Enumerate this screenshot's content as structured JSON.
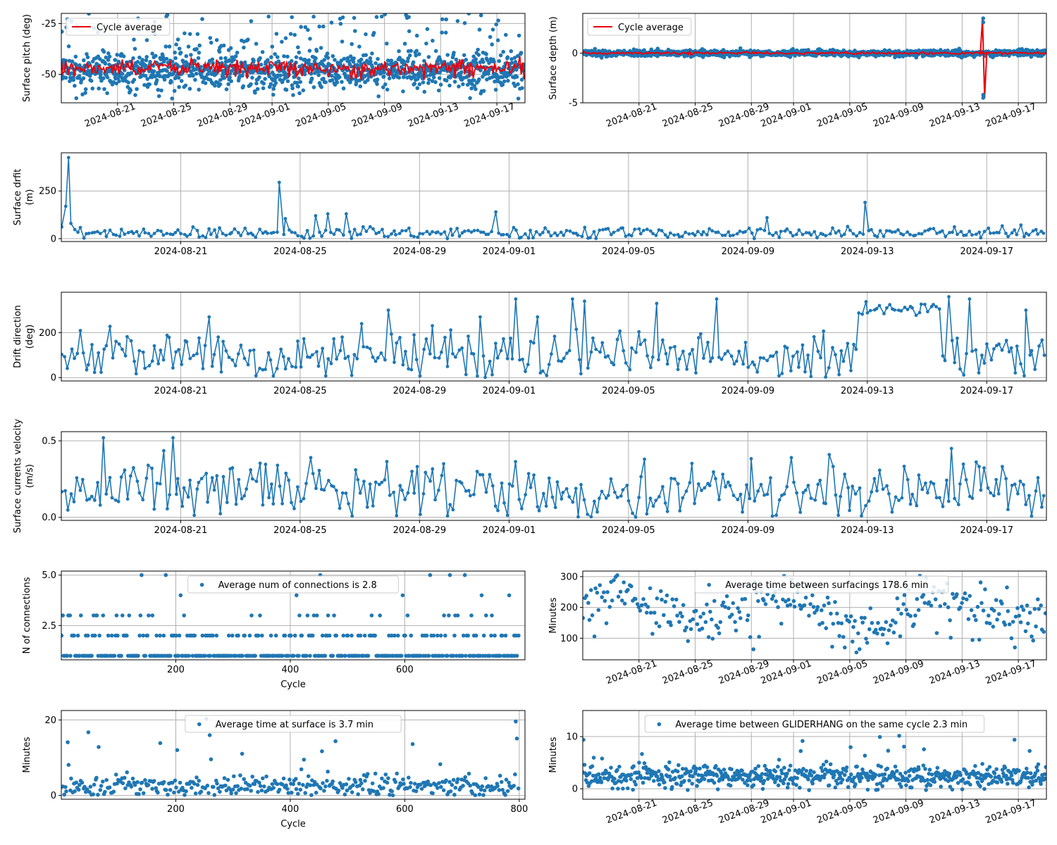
{
  "colors": {
    "series": "#1f77b4",
    "average": "#e8000b",
    "grid": "#b0b0b0"
  },
  "chart_data": [
    {
      "id": "pitch",
      "type": "scatter+line",
      "ylabel": "Surface pitch (deg)",
      "xaxis": "date",
      "xlim": [
        "2024-08-17",
        "2024-09-19"
      ],
      "ylim": [
        -64,
        -20
      ],
      "xticks": [
        "2024-08-21",
        "2024-08-25",
        "2024-08-29",
        "2024-09-01",
        "2024-09-05",
        "2024-09-09",
        "2024-09-13",
        "2024-09-17"
      ],
      "yticks": [
        -50,
        -25
      ],
      "xtick_rotation": 20,
      "legend": {
        "label": "Cycle average",
        "placement": "upper left"
      },
      "series": [
        {
          "name": "",
          "style": "scatter",
          "gen": {
            "x0": "2024-08-17",
            "x1": "2024-09-19",
            "n": 1300,
            "center": -48,
            "spread": 4,
            "outlier_frac": 0.18,
            "outlier_range": [
              -20,
              -62
            ],
            "seed": 11
          }
        },
        {
          "name": "Cycle average",
          "style": "line",
          "gen": {
            "x0": "2024-08-17",
            "x1": "2024-09-19",
            "n": 330,
            "center": -47,
            "spread": 2.2,
            "seed": 12
          }
        }
      ]
    },
    {
      "id": "depth",
      "type": "scatter+line",
      "ylabel": "Surface depth (m)",
      "xaxis": "date",
      "xlim": [
        "2024-08-17",
        "2024-09-19"
      ],
      "ylim": [
        -5,
        4
      ],
      "xticks": [
        "2024-08-21",
        "2024-08-25",
        "2024-08-29",
        "2024-09-01",
        "2024-09-05",
        "2024-09-09",
        "2024-09-13",
        "2024-09-17"
      ],
      "yticks": [
        -5,
        0
      ],
      "xtick_rotation": 20,
      "legend": {
        "label": "Cycle average",
        "placement": "upper left"
      },
      "spike": {
        "date": "2024-09-14.5",
        "high": 3.5,
        "low": -4.5
      },
      "series": [
        {
          "name": "",
          "style": "scatter",
          "gen": {
            "x0": "2024-08-17",
            "x1": "2024-09-19",
            "n": 1300,
            "center": 0,
            "spread": 0.15,
            "seed": 21
          }
        },
        {
          "name": "Cycle average",
          "style": "line",
          "gen": {
            "x0": "2024-08-17",
            "x1": "2024-09-19",
            "n": 330,
            "center": 0,
            "spread": 0.06,
            "seed": 22
          }
        }
      ]
    },
    {
      "id": "drift",
      "type": "line",
      "ylabel": [
        "Surface drfit",
        "(m)"
      ],
      "xaxis": "date",
      "xlim": [
        "2024-08-17",
        "2024-09-19"
      ],
      "ylim": [
        -15,
        450
      ],
      "xticks": [
        "2024-08-21",
        "2024-08-25",
        "2024-08-29",
        "2024-09-01",
        "2024-09-05",
        "2024-09-09",
        "2024-09-13",
        "2024-09-17"
      ],
      "yticks": [
        0,
        250
      ],
      "xtick_rotation": 0,
      "series": [
        {
          "name": "",
          "style": "line+markers",
          "gen": {
            "x0": "2024-08-17",
            "x1": "2024-09-19",
            "n": 330,
            "center": 30,
            "spread": 15,
            "min": 0,
            "seed": 31,
            "peaks": [
              [
                "2024-08-17.1",
                170
              ],
              [
                "2024-08-17.2",
                425
              ],
              [
                "2024-08-17.35",
                80
              ],
              [
                "2024-08-24.3",
                295
              ],
              [
                "2024-08-24.5",
                105
              ],
              [
                "2024-08-25.5",
                120
              ],
              [
                "2024-08-25.9",
                130
              ],
              [
                "2024-08-26.5",
                130
              ],
              [
                "2024-08-31.5",
                140
              ],
              [
                "2024-09-09.6",
                110
              ],
              [
                "2024-09-12.9",
                190
              ]
            ]
          }
        }
      ]
    },
    {
      "id": "direction",
      "type": "line",
      "ylabel": [
        "Drift direction",
        "(deg)"
      ],
      "xaxis": "date",
      "xlim": [
        "2024-08-17",
        "2024-09-19"
      ],
      "ylim": [
        -15,
        380
      ],
      "xticks": [
        "2024-08-21",
        "2024-08-25",
        "2024-08-29",
        "2024-09-01",
        "2024-09-05",
        "2024-09-09",
        "2024-09-13",
        "2024-09-17"
      ],
      "yticks": [
        0,
        200
      ],
      "xtick_rotation": 0,
      "series": [
        {
          "name": "",
          "style": "line+markers",
          "gen": {
            "x0": "2024-08-17",
            "x1": "2024-09-19",
            "n": 330,
            "center": 100,
            "spread": 50,
            "min": 0,
            "max": 360,
            "seed": 41,
            "plateau": [
              "2024-09-12.7",
              "2024-09-15.5",
              300
            ],
            "peaks": [
              [
                "2024-08-22",
                270
              ],
              [
                "2024-08-27",
                240
              ],
              [
                "2024-08-28",
                300
              ],
              [
                "2024-08-31",
                270
              ],
              [
                "2024-09-01.2",
                350
              ],
              [
                "2024-09-02",
                270
              ],
              [
                "2024-09-03.1",
                350
              ],
              [
                "2024-09-03.5",
                340
              ],
              [
                "2024-09-05.9",
                330
              ],
              [
                "2024-09-07.9",
                350
              ],
              [
                "2024-09-15.7",
                360
              ],
              [
                "2024-09-16.4",
                350
              ],
              [
                "2024-09-18.3",
                300
              ]
            ]
          }
        }
      ]
    },
    {
      "id": "velocity",
      "type": "line",
      "ylabel": [
        "Surface currents velocity",
        "(m/s)"
      ],
      "xaxis": "date",
      "xlim": [
        "2024-08-17",
        "2024-09-19"
      ],
      "ylim": [
        -0.02,
        0.56
      ],
      "xticks": [
        "2024-08-21",
        "2024-08-25",
        "2024-08-29",
        "2024-09-01",
        "2024-09-05",
        "2024-09-09",
        "2024-09-13",
        "2024-09-17"
      ],
      "yticks": [
        0.0,
        0.5
      ],
      "xtick_rotation": 0,
      "series": [
        {
          "name": "",
          "style": "line+markers",
          "gen": {
            "x0": "2024-08-17",
            "x1": "2024-09-19",
            "n": 330,
            "center": 0.17,
            "spread": 0.09,
            "min": 0,
            "seed": 51,
            "peaks": [
              [
                "2024-08-18.4",
                0.52
              ],
              [
                "2024-08-20.7",
                0.52
              ],
              [
                "2024-08-24.2",
                0.34
              ],
              [
                "2024-08-25.3",
                0.39
              ],
              [
                "2024-09-05.5",
                0.38
              ],
              [
                "2024-09-10.4",
                0.39
              ],
              [
                "2024-09-11.7",
                0.41
              ],
              [
                "2024-09-15.8",
                0.45
              ]
            ]
          }
        }
      ]
    },
    {
      "id": "connections",
      "type": "scatter",
      "ylabel": "N of connections",
      "xlabel": "Cycle",
      "xaxis": "linear",
      "xlim": [
        0,
        810
      ],
      "ylim": [
        0.8,
        5.2
      ],
      "xticks": [
        200,
        400,
        600
      ],
      "yticks": [
        2.5,
        5.0
      ],
      "ytick_format": 1,
      "legend": {
        "label": "Average num of connections is 2.8",
        "placement": "upper center"
      },
      "series": [
        {
          "name": "Average num of connections is 2.8",
          "style": "scatter",
          "gen": {
            "x0": 0,
            "x1": 800,
            "n": 400,
            "levels": [
              [
                1,
                0.62
              ],
              [
                2,
                0.26
              ],
              [
                3,
                0.08
              ],
              [
                4,
                0.02
              ],
              [
                5,
                0.02
              ]
            ],
            "seed": 61
          }
        }
      ]
    },
    {
      "id": "surfacings",
      "type": "scatter",
      "ylabel": "Minutes",
      "xaxis": "date",
      "xlim": [
        "2024-08-17",
        "2024-09-19"
      ],
      "ylim": [
        30,
        318
      ],
      "xticks": [
        "2024-08-21",
        "2024-08-25",
        "2024-08-29",
        "2024-09-01",
        "2024-09-05",
        "2024-09-09",
        "2024-09-13",
        "2024-09-17"
      ],
      "yticks": [
        100,
        200,
        300
      ],
      "xtick_rotation": 20,
      "legend": {
        "label": "Average time between surfacings 178.6 min",
        "placement": "upper center"
      },
      "series": [
        {
          "name": "Average time between surfacings 178.6 min",
          "style": "scatter",
          "gen": {
            "x0": "2024-08-17",
            "x1": "2024-09-19",
            "n": 300,
            "center": 195,
            "spread": 40,
            "wave": 45,
            "min": 35,
            "max": 305,
            "outlier_frac": 0.06,
            "outlier_range": [
              60,
              120
            ],
            "seed": 71
          }
        }
      ]
    },
    {
      "id": "time-at-surface",
      "type": "scatter",
      "ylabel": "Minutes",
      "xlabel": "Cycle",
      "xaxis": "linear",
      "xlim": [
        0,
        810
      ],
      "ylim": [
        -1,
        22.5
      ],
      "xticks": [
        200,
        400,
        600,
        800
      ],
      "yticks": [
        0,
        20
      ],
      "legend": {
        "label": "Average time at surface is 3.7 min",
        "placement": "upper center"
      },
      "series": [
        {
          "name": "Average time at surface is 3.7 min",
          "style": "scatter",
          "gen": {
            "x0": 0,
            "x1": 800,
            "n": 380,
            "center": 2.5,
            "spread": 1.4,
            "min": 0,
            "outlier_frac": 0.07,
            "outlier_range": [
              6,
              21.5
            ],
            "seed": 81
          }
        }
      ]
    },
    {
      "id": "gliderhang",
      "type": "scatter",
      "ylabel": "Minutes",
      "xaxis": "date",
      "xlim": [
        "2024-08-17",
        "2024-09-19"
      ],
      "ylim": [
        -2,
        15
      ],
      "xticks": [
        "2024-08-21",
        "2024-08-25",
        "2024-08-29",
        "2024-09-01",
        "2024-09-05",
        "2024-09-09",
        "2024-09-13",
        "2024-09-17"
      ],
      "yticks": [
        0,
        10
      ],
      "xtick_rotation": 20,
      "legend": {
        "label": "Average time between GLIDERHANG on the same cycle 2.3 min",
        "placement": "upper center"
      },
      "series": [
        {
          "name": "Average time between GLIDERHANG on the same cycle 2.3 min",
          "style": "scatter",
          "gen": {
            "x0": "2024-08-17",
            "x1": "2024-09-19",
            "n": 650,
            "center": 2.3,
            "spread": 1.1,
            "min": -0.3,
            "outlier_frac": 0.02,
            "outlier_range": [
              5,
              10.5
            ],
            "seed": 91
          }
        }
      ]
    }
  ]
}
